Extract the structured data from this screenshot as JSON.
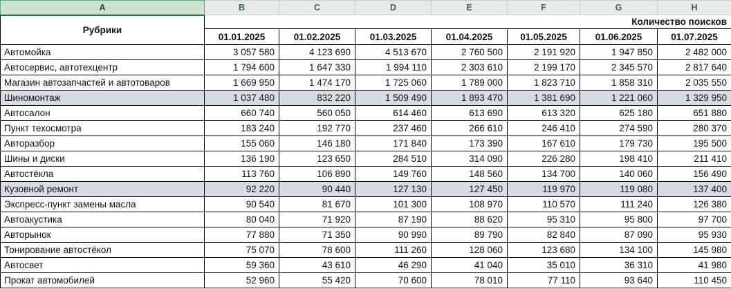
{
  "colors": {
    "accent_green": "#217346",
    "selected_header_bg": "#cde3d2",
    "selected_header_border": "#62a37e",
    "header_bg": "#e7ebe7",
    "header_border": "#c9cec9",
    "highlight_row_bg": "#d6dce4",
    "grid_border": "#000000"
  },
  "spreadsheet": {
    "column_letters": [
      "A",
      "B",
      "C",
      "D",
      "E",
      "F",
      "G",
      "H"
    ],
    "selected_column": "A",
    "header": {
      "rubrics_label": "Рубрики",
      "searches_label": "Количество поисков",
      "dates": [
        "01.01.2025",
        "01.02.2025",
        "01.03.2025",
        "01.04.2025",
        "01.05.2025",
        "01.06.2025",
        "01.07.2025"
      ]
    },
    "rows": [
      {
        "name": "Автомойка",
        "highlighted": false,
        "values": [
          "3 057 580",
          "4 123 690",
          "4 513 670",
          "2 760 500",
          "2 191 920",
          "1 947 850",
          "2 482 000"
        ]
      },
      {
        "name": "Автосервис, автотехцентр",
        "highlighted": false,
        "values": [
          "1 794 600",
          "1 647 330",
          "1 994 110",
          "2 303 610",
          "2 199 170",
          "2 345 570",
          "2 817 640"
        ]
      },
      {
        "name": "Магазин автозапчастей и автотоваров",
        "highlighted": false,
        "values": [
          "1 669 950",
          "1 474 170",
          "1 725 060",
          "1 789 000",
          "1 823 710",
          "1 858 310",
          "2 035 550"
        ]
      },
      {
        "name": "Шиномонтаж",
        "highlighted": true,
        "values": [
          "1 037 480",
          "832 220",
          "1 509 490",
          "1 893 470",
          "1 381 690",
          "1 221 060",
          "1 329 950"
        ]
      },
      {
        "name": "Автосалон",
        "highlighted": false,
        "values": [
          "660 740",
          "560 050",
          "614 460",
          "613 690",
          "613 320",
          "625 180",
          "651 880"
        ]
      },
      {
        "name": "Пункт техосмотра",
        "highlighted": false,
        "values": [
          "183 240",
          "192 770",
          "237 460",
          "266 610",
          "246 410",
          "274 590",
          "280 370"
        ]
      },
      {
        "name": "Авторазбор",
        "highlighted": false,
        "values": [
          "155 060",
          "146 180",
          "171 840",
          "173 390",
          "167 610",
          "179 730",
          "195 500"
        ]
      },
      {
        "name": "Шины и диски",
        "highlighted": false,
        "values": [
          "136 190",
          "123 650",
          "284 510",
          "314 090",
          "226 280",
          "198 410",
          "211 410"
        ]
      },
      {
        "name": "Автостёкла",
        "highlighted": false,
        "values": [
          "113 760",
          "106 890",
          "149 760",
          "148 560",
          "134 700",
          "140 060",
          "156 490"
        ]
      },
      {
        "name": "Кузовной ремонт",
        "highlighted": true,
        "values": [
          "92 220",
          "90 440",
          "127 130",
          "127 450",
          "119 970",
          "119 080",
          "137 400"
        ]
      },
      {
        "name": "Экспресс-пункт замены масла",
        "highlighted": false,
        "values": [
          "90 540",
          "81 670",
          "101 300",
          "108 970",
          "110 570",
          "111 240",
          "126 380"
        ]
      },
      {
        "name": "Автоакустика",
        "highlighted": false,
        "values": [
          "80 040",
          "71 920",
          "87 190",
          "88 620",
          "95 310",
          "95 800",
          "97 700"
        ]
      },
      {
        "name": "Авторынок",
        "highlighted": false,
        "values": [
          "77 880",
          "71 350",
          "90 990",
          "89 790",
          "82 840",
          "87 090",
          "95 930"
        ]
      },
      {
        "name": "Тонирование автостёкол",
        "highlighted": false,
        "values": [
          "75 070",
          "78 600",
          "111 260",
          "128 060",
          "123 680",
          "134 100",
          "145 980"
        ]
      },
      {
        "name": "Автосвет",
        "highlighted": false,
        "values": [
          "59 360",
          "43 610",
          "46 290",
          "41 040",
          "35 010",
          "36 310",
          "41 980"
        ]
      },
      {
        "name": "Прокат автомобилей",
        "highlighted": false,
        "values": [
          "52 960",
          "55 420",
          "70 600",
          "78 010",
          "77 110",
          "93 640",
          "110 450"
        ]
      }
    ]
  }
}
